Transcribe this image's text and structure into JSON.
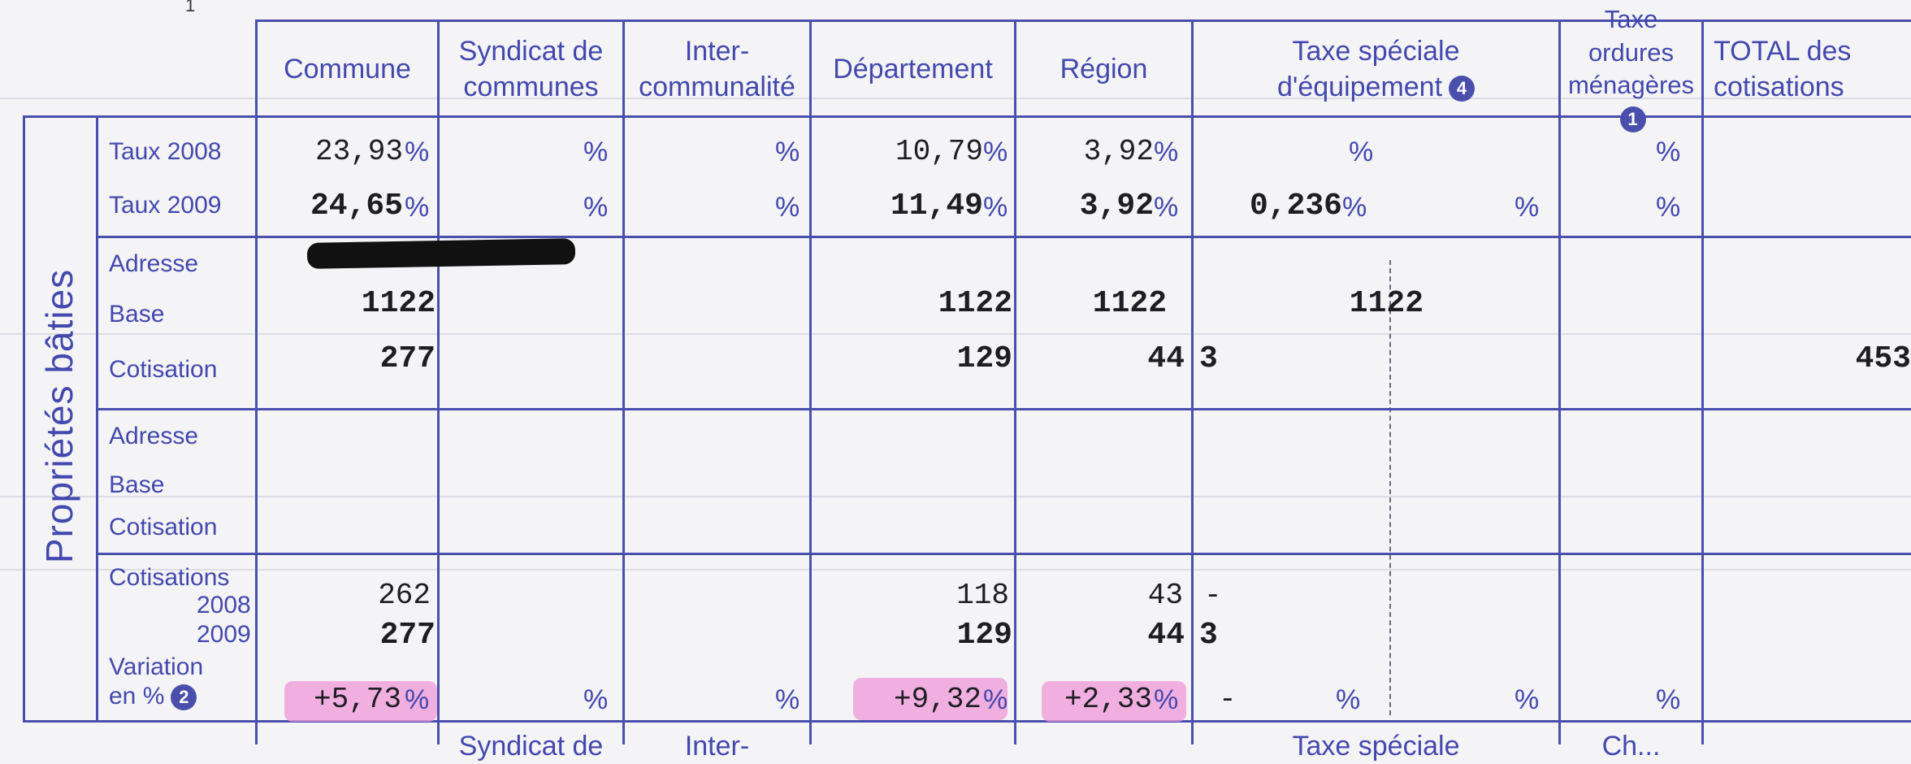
{
  "page_number": "1",
  "header": {
    "columns": [
      {
        "key": "commune",
        "label": "Commune"
      },
      {
        "key": "syndicat",
        "label": "Syndicat de communes"
      },
      {
        "key": "inter",
        "label": "Inter-communalité"
      },
      {
        "key": "departement",
        "label": "Département"
      },
      {
        "key": "region",
        "label": "Région"
      },
      {
        "key": "tse",
        "label": "Taxe spéciale d'équipement",
        "badge": "4"
      },
      {
        "key": "teom",
        "label": "Taxe ordures ménagères",
        "badge": "1"
      },
      {
        "key": "total",
        "label": "TOTAL des cotisations"
      }
    ],
    "commune": "Commune",
    "syndicat_1": "Syndicat de",
    "syndicat_2": "communes",
    "inter_1": "Inter-",
    "inter_2": "communalité",
    "departement": "Département",
    "region": "Région",
    "tse_1": "Taxe spéciale",
    "tse_2": "d'équipement",
    "tse_badge": "4",
    "teom_1": "Taxe ordures",
    "teom_2": "ménagères",
    "teom_badge": "1",
    "total_1": "TOTAL des",
    "total_2": "cotisations"
  },
  "section_title": "Propriétés bâties",
  "row_labels": {
    "taux_2008": "Taux 2008",
    "taux_2009": "Taux 2009",
    "adresse": "Adresse",
    "base": "Base",
    "cotisation": "Cotisation",
    "cotisations": "Cotisations",
    "y2008": "2008",
    "y2009": "2009",
    "variation": "Variation",
    "en_pct": "en %",
    "variation_badge": "2"
  },
  "pct_sign": "%",
  "taux_2008": {
    "commune": "23,93",
    "departement": "10,79",
    "region": "3,92"
  },
  "taux_2009": {
    "commune": "24,65",
    "departement": "11,49",
    "region": "3,92",
    "tse": "0,236"
  },
  "block1": {
    "base": {
      "commune": "1122",
      "departement": "1122",
      "region": "1122",
      "tse": "1122"
    },
    "cotisation": {
      "commune": "277",
      "departement": "129",
      "region": "44",
      "tse": "3",
      "total": "453"
    }
  },
  "cotisations": {
    "y2008": {
      "commune": "262",
      "departement": "118",
      "region": "43",
      "tse": "-"
    },
    "y2009": {
      "commune": "277",
      "departement": "129",
      "region": "44",
      "tse": "3"
    }
  },
  "variation": {
    "commune": "+5,73",
    "departement": "+9,32",
    "region": "+2,33",
    "tse": "-"
  },
  "bottom_header": {
    "syndicat": "Syndicat de",
    "inter": "Inter-",
    "tse": "Taxe spéciale",
    "teom": "Ch..."
  },
  "colors": {
    "form_blue": "#4a4fae",
    "highlight_pink": "#f098d8",
    "ink": "#1d1d22"
  }
}
